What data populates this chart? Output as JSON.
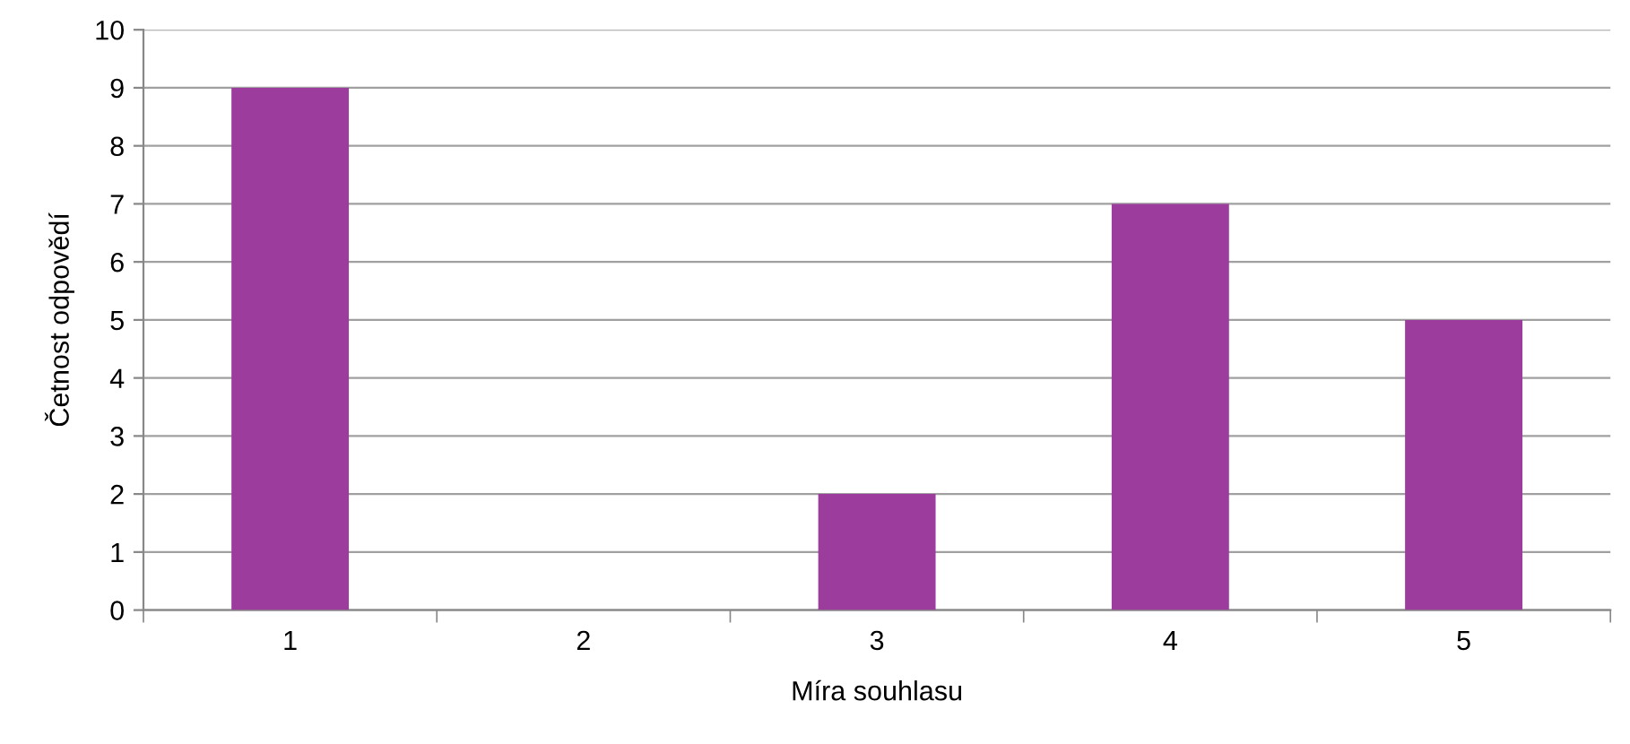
{
  "chart_data": {
    "type": "bar",
    "xlabel": "Míra souhlasu",
    "ylabel": "Četnost odpovědí",
    "categories": [
      "1",
      "2",
      "3",
      "4",
      "5"
    ],
    "values": [
      9,
      0,
      2,
      7,
      5
    ],
    "color": "#9c3c9c",
    "ylim": [
      0,
      10
    ],
    "yticks": [
      0,
      1,
      2,
      3,
      4,
      5,
      6,
      7,
      8,
      9,
      10
    ],
    "grid": "y",
    "legend": false
  }
}
